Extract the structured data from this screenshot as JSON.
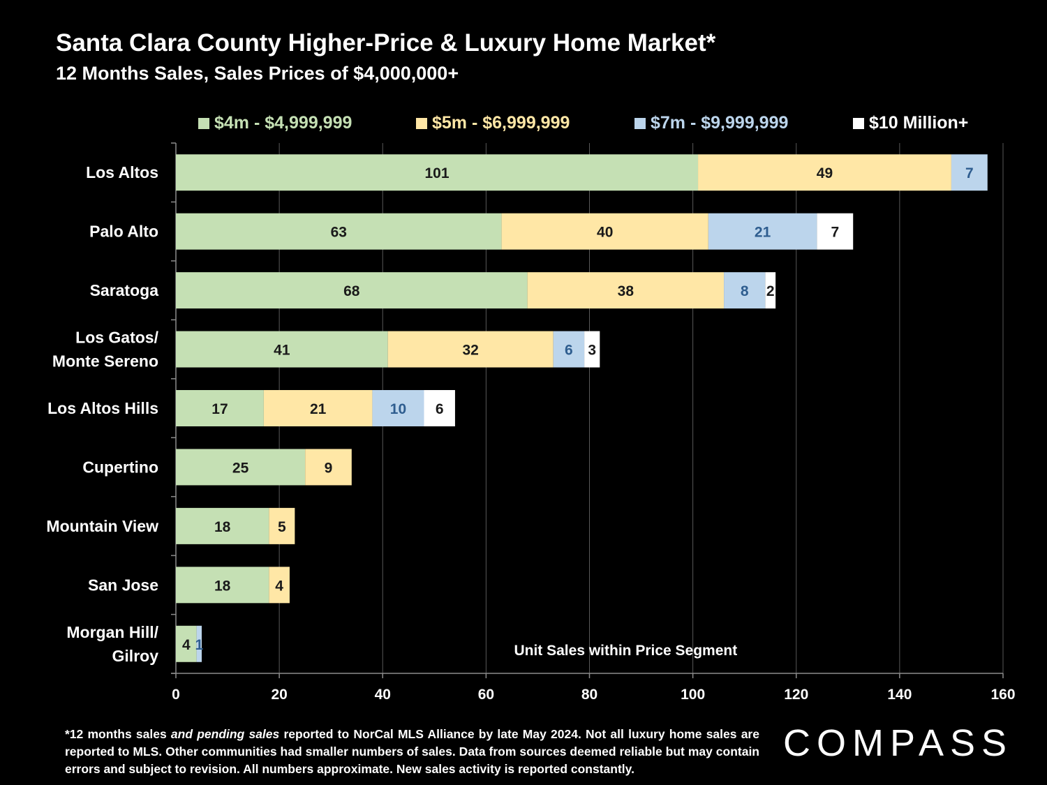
{
  "chart_data": {
    "type": "bar",
    "orientation": "horizontal",
    "stacked": true,
    "title": "Santa Clara County Higher-Price & Luxury Home Market*",
    "subtitle": "12 Months Sales, Sales Prices of $4,000,000+",
    "categories": [
      "Los Altos",
      "Palo Alto",
      "Saratoga",
      "Los Gatos/\nMonte Sereno",
      "Los Altos Hills",
      "Cupertino",
      "Mountain View",
      "San Jose",
      "Morgan Hill/\nGilroy"
    ],
    "series": [
      {
        "name": "$4m - $4,999,999",
        "color": "#c5e0b4",
        "label_color": "#1a1a1a",
        "values": [
          101,
          63,
          68,
          41,
          17,
          25,
          18,
          18,
          4
        ]
      },
      {
        "name": "$5m - $6,999,999",
        "color": "#ffe7a6",
        "label_color": "#1a1a1a",
        "values": [
          49,
          40,
          38,
          32,
          21,
          9,
          5,
          4,
          0
        ]
      },
      {
        "name": "$7m - $9,999,999",
        "color": "#bcd5ec",
        "label_color": "#2e5d8f",
        "values": [
          7,
          21,
          8,
          6,
          10,
          0,
          0,
          0,
          1
        ]
      },
      {
        "name": "$10 Million+",
        "color": "#ffffff",
        "label_color": "#1a1a1a",
        "values": [
          0,
          7,
          2,
          3,
          6,
          0,
          0,
          0,
          0
        ]
      }
    ],
    "xlim": [
      0,
      160
    ],
    "xticks": [
      0,
      20,
      40,
      60,
      80,
      100,
      120,
      140,
      160
    ],
    "xlabel": "",
    "ylabel": "",
    "annotation": "Unit Sales within Price Segment",
    "grid": true,
    "legend_position": "top"
  },
  "footnote": {
    "part1": "*12 months sales ",
    "italic": "and pending sales",
    "part2": " reported to NorCal MLS Alliance by late May 2024. Not all luxury home sales are reported to MLS. Other communities had smaller numbers of sales. Data from sources deemed reliable but may contain errors and subject to revision. All numbers approximate. New sales activity is reported constantly."
  },
  "logo": {
    "text": "COMPASS"
  }
}
